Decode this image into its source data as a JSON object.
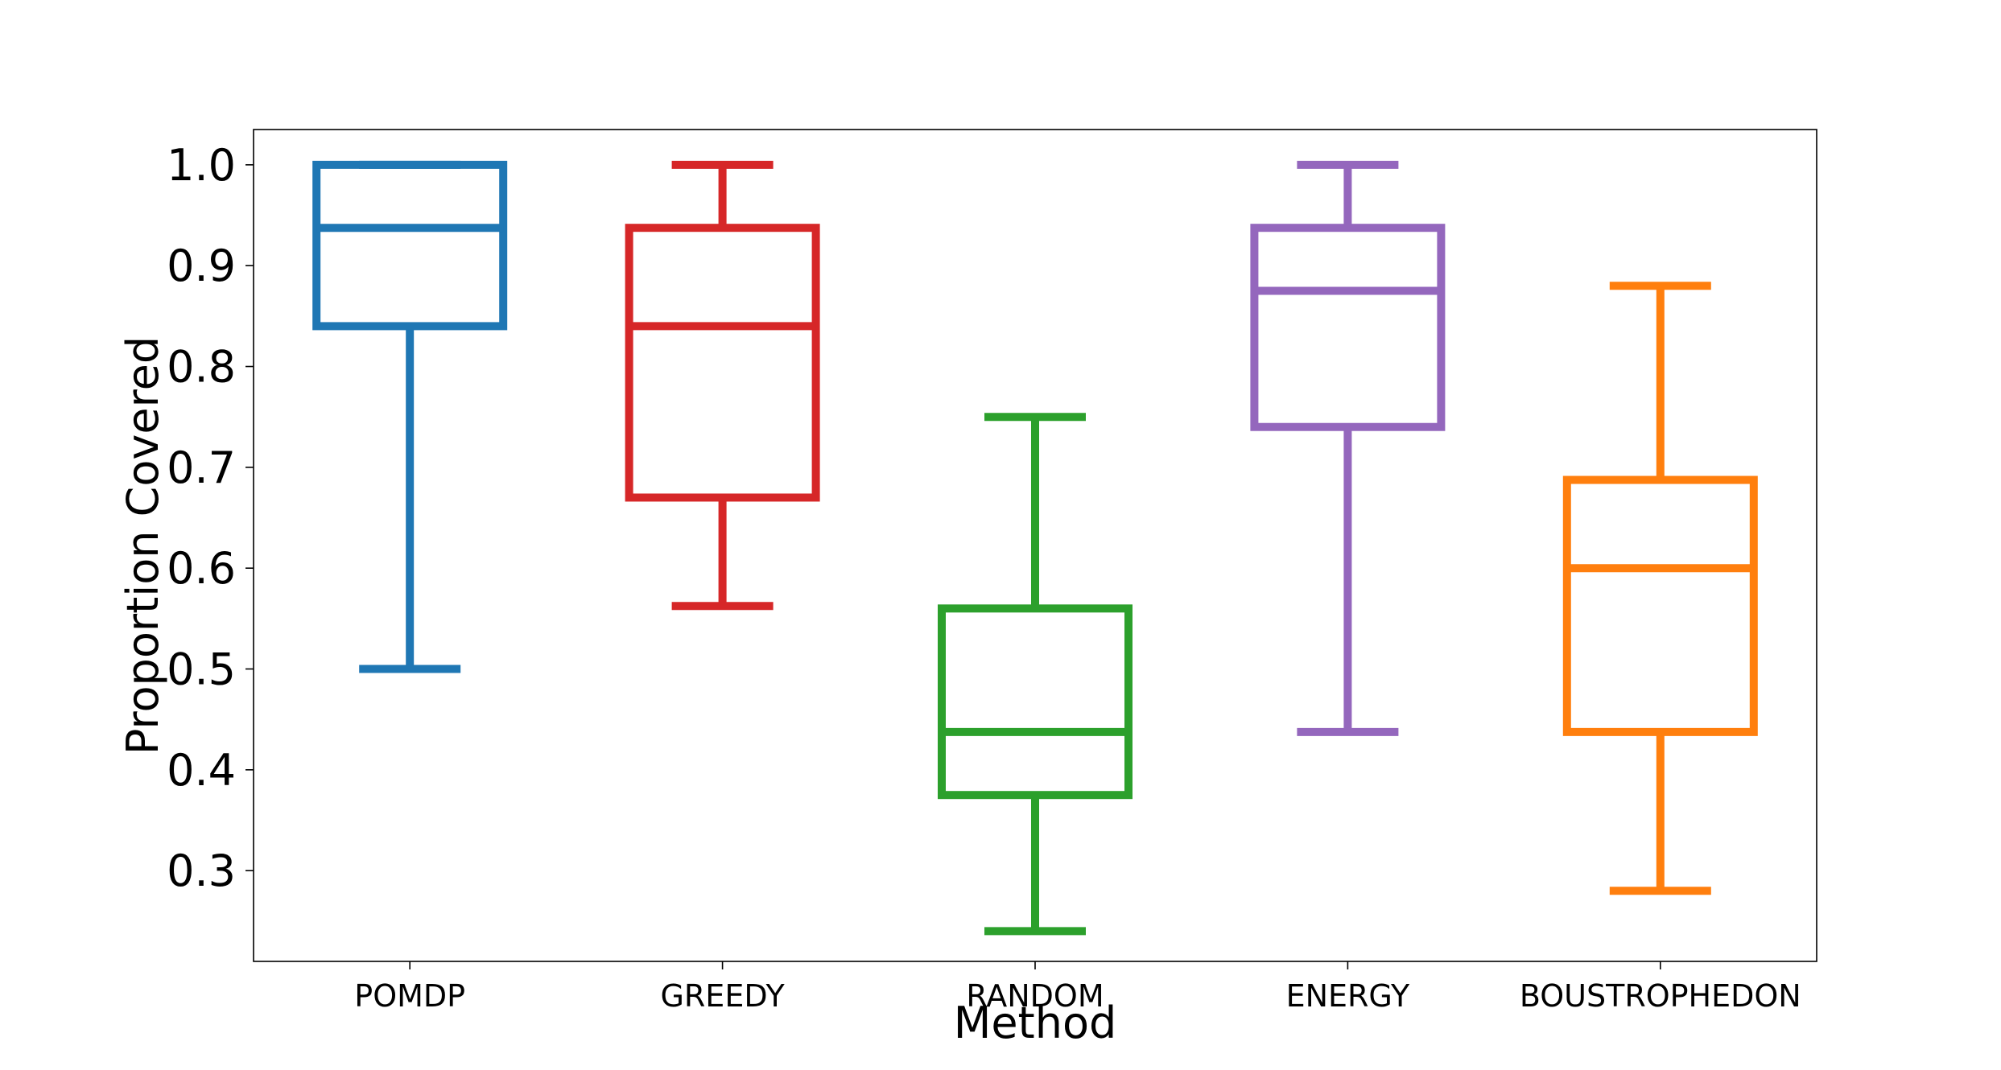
{
  "chart_data": {
    "type": "box",
    "title": "",
    "xlabel": "Method",
    "ylabel": "Proportion Covered",
    "ylim": [
      0.21,
      1.035
    ],
    "yticks": [
      0.3,
      0.4,
      0.5,
      0.6,
      0.7,
      0.8,
      0.9,
      1.0
    ],
    "ytick_labels": [
      "0.3",
      "0.4",
      "0.5",
      "0.6",
      "0.7",
      "0.8",
      "0.9",
      "1.0"
    ],
    "grid": false,
    "categories": [
      "POMDP",
      "GREEDY",
      "RANDOM",
      "ENERGY",
      "BOUSTROPHEDON"
    ],
    "boxes": [
      {
        "name": "POMDP",
        "color": "#1f77b4",
        "whisker_low": 0.5,
        "q1": 0.84,
        "median": 0.9375,
        "q3": 1.0,
        "whisker_high": 1.0
      },
      {
        "name": "GREEDY",
        "color": "#d62728",
        "whisker_low": 0.5625,
        "q1": 0.67,
        "median": 0.84,
        "q3": 0.9375,
        "whisker_high": 1.0
      },
      {
        "name": "RANDOM",
        "color": "#2ca02c",
        "whisker_low": 0.24,
        "q1": 0.375,
        "median": 0.4375,
        "q3": 0.56,
        "whisker_high": 0.75
      },
      {
        "name": "ENERGY",
        "color": "#9467bd",
        "whisker_low": 0.4375,
        "q1": 0.74,
        "median": 0.875,
        "q3": 0.9375,
        "whisker_high": 1.0
      },
      {
        "name": "BOUSTROPHEDON",
        "color": "#ff7f0e",
        "whisker_low": 0.28,
        "q1": 0.4375,
        "median": 0.6,
        "q3": 0.6875,
        "whisker_high": 0.88
      }
    ]
  }
}
